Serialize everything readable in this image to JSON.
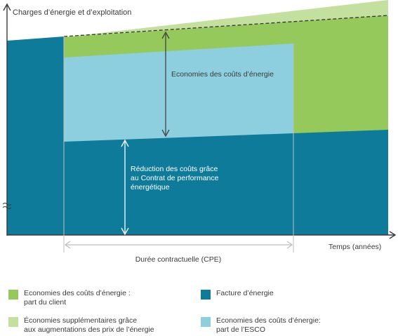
{
  "diagram": {
    "y_axis_label": "Charges d’énergie et d’exploitation",
    "x_axis_label": "Temps (années)",
    "savings_label": "Economies des coûts d’énergie",
    "reduction_label_lines": [
      "Réduction des coûts grâce",
      "au Contrat de performance",
      "énergétique"
    ],
    "duration_label": "Durée contractuelle (CPE)"
  },
  "colors": {
    "client_savings": "#95c95b",
    "extra_savings": "#c3e09e",
    "energy_bill": "#0e7b9b",
    "esco_savings": "#8ecfdf",
    "axis": "#3a3a3a",
    "arrow": "#444444"
  },
  "legend": [
    {
      "label": "Economies des coûts d’énergie :\npart du client",
      "color": "#95c95b"
    },
    {
      "label": "Facture d’énergie",
      "color": "#0e7b9b"
    },
    {
      "label": "Économies supplémentaires grâce\naux augmentations des prix de l’énergie",
      "color": "#c3e09e"
    },
    {
      "label": "Economies des coûts d’énergie:\npart de l’ESCO",
      "color": "#8ecfdf"
    }
  ]
}
